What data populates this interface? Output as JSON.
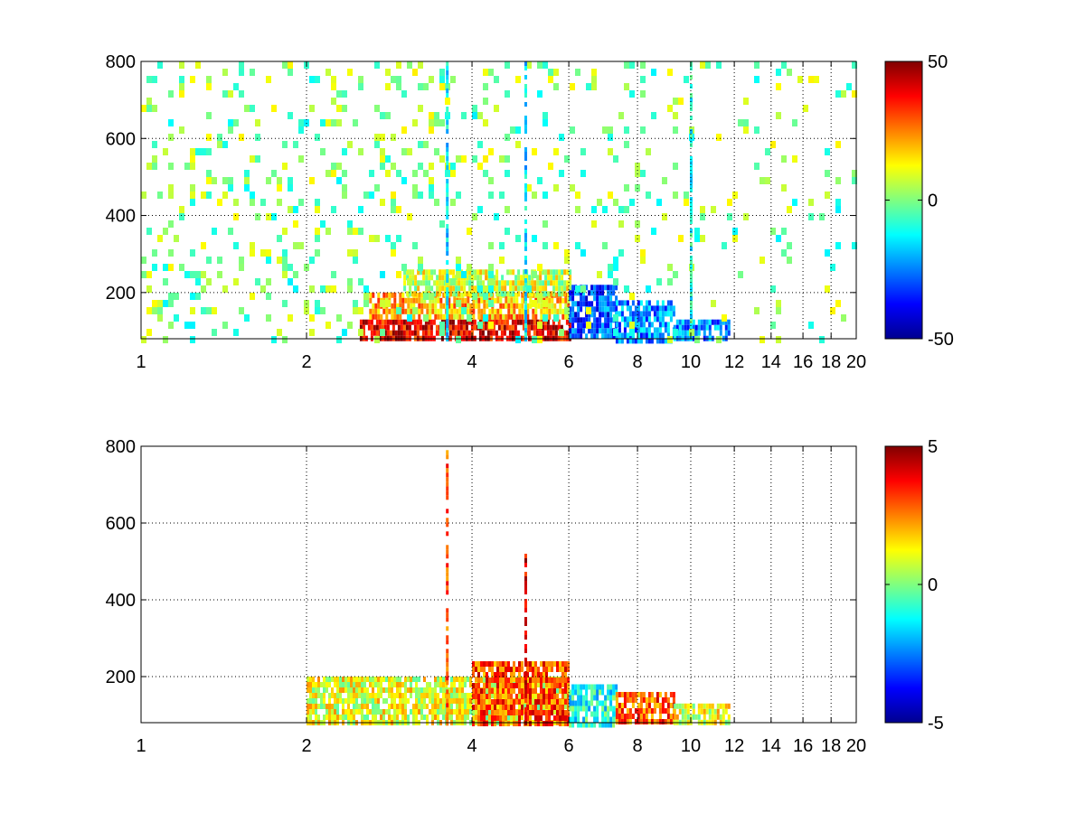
{
  "chart_data": [
    {
      "type": "heatmap",
      "title": "",
      "xlabel": "",
      "ylabel": "",
      "xscale": "log",
      "xlim": [
        1,
        20
      ],
      "ylim": [
        80,
        800
      ],
      "xticks": [
        1,
        2,
        4,
        6,
        8,
        10,
        12,
        14,
        16,
        18,
        20
      ],
      "xtick_labels": [
        "1",
        "2",
        "4",
        "6",
        "8",
        "10",
        "12",
        "14",
        "16",
        "18",
        "20"
      ],
      "yticks": [
        200,
        400,
        600,
        800
      ],
      "ytick_labels": [
        "200",
        "400",
        "600",
        "800"
      ],
      "grid": true,
      "colormap": "jet",
      "colorbar": {
        "min": -50,
        "max": 50,
        "ticks": [
          -50,
          0,
          50
        ],
        "tick_labels": [
          "-50",
          "0",
          "50"
        ]
      },
      "regions": [
        {
          "x": [
            2.5,
            6.0
          ],
          "y": [
            80,
            130
          ],
          "value": 40
        },
        {
          "x": [
            2.6,
            6.0
          ],
          "y": [
            130,
            200
          ],
          "value": 20
        },
        {
          "x": [
            3.0,
            6.0
          ],
          "y": [
            200,
            260
          ],
          "value": 8
        },
        {
          "x": [
            6.0,
            7.3
          ],
          "y": [
            80,
            220
          ],
          "value": -30
        },
        {
          "x": [
            7.3,
            9.3
          ],
          "y": [
            80,
            180
          ],
          "value": -25
        },
        {
          "x": [
            9.3,
            11.7
          ],
          "y": [
            80,
            130
          ],
          "value": -25
        },
        {
          "x": [
            1,
            20
          ],
          "y": [
            80,
            800
          ],
          "value": 0,
          "sparse": true
        }
      ],
      "streaks": [
        {
          "x": 3.6,
          "y": [
            80,
            800
          ],
          "value": -15
        },
        {
          "x": 5.0,
          "y": [
            80,
            800
          ],
          "value": -15
        },
        {
          "x": 10.0,
          "y": [
            80,
            800
          ],
          "value": -10
        }
      ]
    },
    {
      "type": "heatmap",
      "title": "",
      "xlabel": "",
      "ylabel": "",
      "xscale": "log",
      "xlim": [
        1,
        20
      ],
      "ylim": [
        80,
        800
      ],
      "xticks": [
        1,
        2,
        4,
        6,
        8,
        10,
        12,
        14,
        16,
        18,
        20
      ],
      "xtick_labels": [
        "1",
        "2",
        "4",
        "6",
        "8",
        "10",
        "12",
        "14",
        "16",
        "18",
        "20"
      ],
      "yticks": [
        200,
        400,
        600,
        800
      ],
      "ytick_labels": [
        "200",
        "400",
        "600",
        "800"
      ],
      "grid": true,
      "colormap": "jet",
      "colorbar": {
        "min": -5,
        "max": 5,
        "ticks": [
          -5,
          0,
          5
        ],
        "tick_labels": [
          "-5",
          "0",
          "5"
        ]
      },
      "regions": [
        {
          "x": [
            2.0,
            6.0
          ],
          "y": [
            80,
            200
          ],
          "value": 1
        },
        {
          "x": [
            4.0,
            6.0
          ],
          "y": [
            80,
            240
          ],
          "value": 3
        },
        {
          "x": [
            6.0,
            7.3
          ],
          "y": [
            80,
            180
          ],
          "value": -1
        },
        {
          "x": [
            7.3,
            9.3
          ],
          "y": [
            80,
            160
          ],
          "value": 3
        },
        {
          "x": [
            9.3,
            11.7
          ],
          "y": [
            80,
            130
          ],
          "value": 1
        }
      ],
      "streaks": [
        {
          "x": 3.6,
          "y": [
            80,
            790
          ],
          "value": 3
        },
        {
          "x": 5.0,
          "y": [
            80,
            520
          ],
          "value": 4
        }
      ]
    }
  ]
}
